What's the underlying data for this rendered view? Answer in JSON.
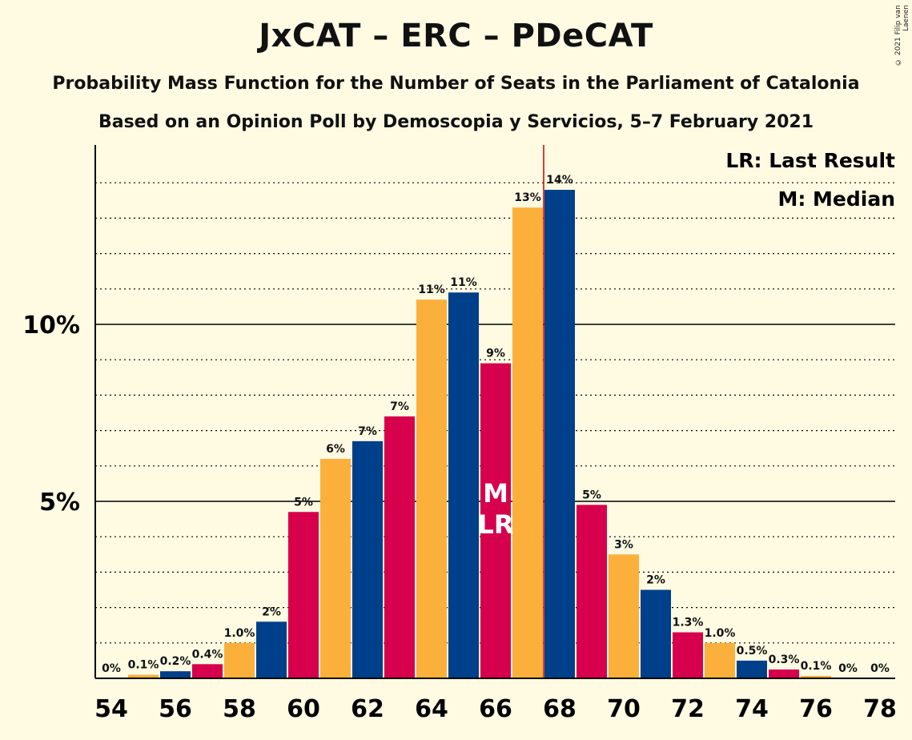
{
  "title": "JxCAT – ERC – PDeCAT",
  "subtitle1": "Probability Mass Function for the Number of Seats in the Parliament of Catalonia",
  "subtitle2": "Based on an Opinion Poll by Demoscopia y Servicios, 5–7 February 2021",
  "copyright": "© 2021 Filip van Laenen",
  "legend": {
    "lr": "LR: Last Result",
    "m": "M: Median"
  },
  "colors": {
    "background": "#fffbe3",
    "yellow": "#fbb03b",
    "blue": "#003f8a",
    "red": "#d6004d",
    "majority_line": "#cc0000"
  },
  "chart_data": {
    "type": "bar",
    "x": [
      54,
      55,
      56,
      57,
      58,
      59,
      60,
      61,
      62,
      63,
      64,
      65,
      66,
      67,
      68,
      69,
      70,
      71,
      72,
      73,
      74,
      75,
      76,
      77,
      78
    ],
    "values": [
      0,
      0.1,
      0.2,
      0.4,
      1.0,
      1.6,
      4.7,
      6.2,
      6.7,
      7.4,
      10.7,
      10.9,
      8.9,
      13.3,
      13.8,
      4.9,
      3.5,
      2.5,
      1.3,
      1.0,
      0.5,
      0.25,
      0.07,
      0,
      0
    ],
    "labels": [
      "0%",
      "0.1%",
      "0.2%",
      "0.4%",
      "1.0%",
      "2%",
      "5%",
      "6%",
      "7%",
      "7%",
      "11%",
      "11%",
      "9%",
      "13%",
      "14%",
      "5%",
      "3%",
      "2%",
      "1.3%",
      "1.0%",
      "0.5%",
      "0.3%",
      "0.1%",
      "0%",
      "0%"
    ],
    "bar_colors": [
      "yellow",
      "yellow",
      "blue",
      "red",
      "yellow",
      "blue",
      "red",
      "yellow",
      "blue",
      "red",
      "yellow",
      "blue",
      "red",
      "yellow",
      "blue",
      "red",
      "yellow",
      "blue",
      "red",
      "yellow",
      "blue",
      "red",
      "yellow",
      "blue",
      "red"
    ],
    "x_tick_labels": [
      "54",
      "56",
      "58",
      "60",
      "62",
      "64",
      "66",
      "68",
      "70",
      "72",
      "74",
      "76",
      "78"
    ],
    "y_tick_labels": [
      {
        "value": 5,
        "label": "5%"
      },
      {
        "value": 10,
        "label": "10%"
      }
    ],
    "ylim": [
      0,
      15
    ],
    "minor_grid_step": 1,
    "majority_at": 67.5,
    "median_seat": 66,
    "last_result_seat": 66,
    "median_marker": "M",
    "last_result_marker": "LR"
  }
}
